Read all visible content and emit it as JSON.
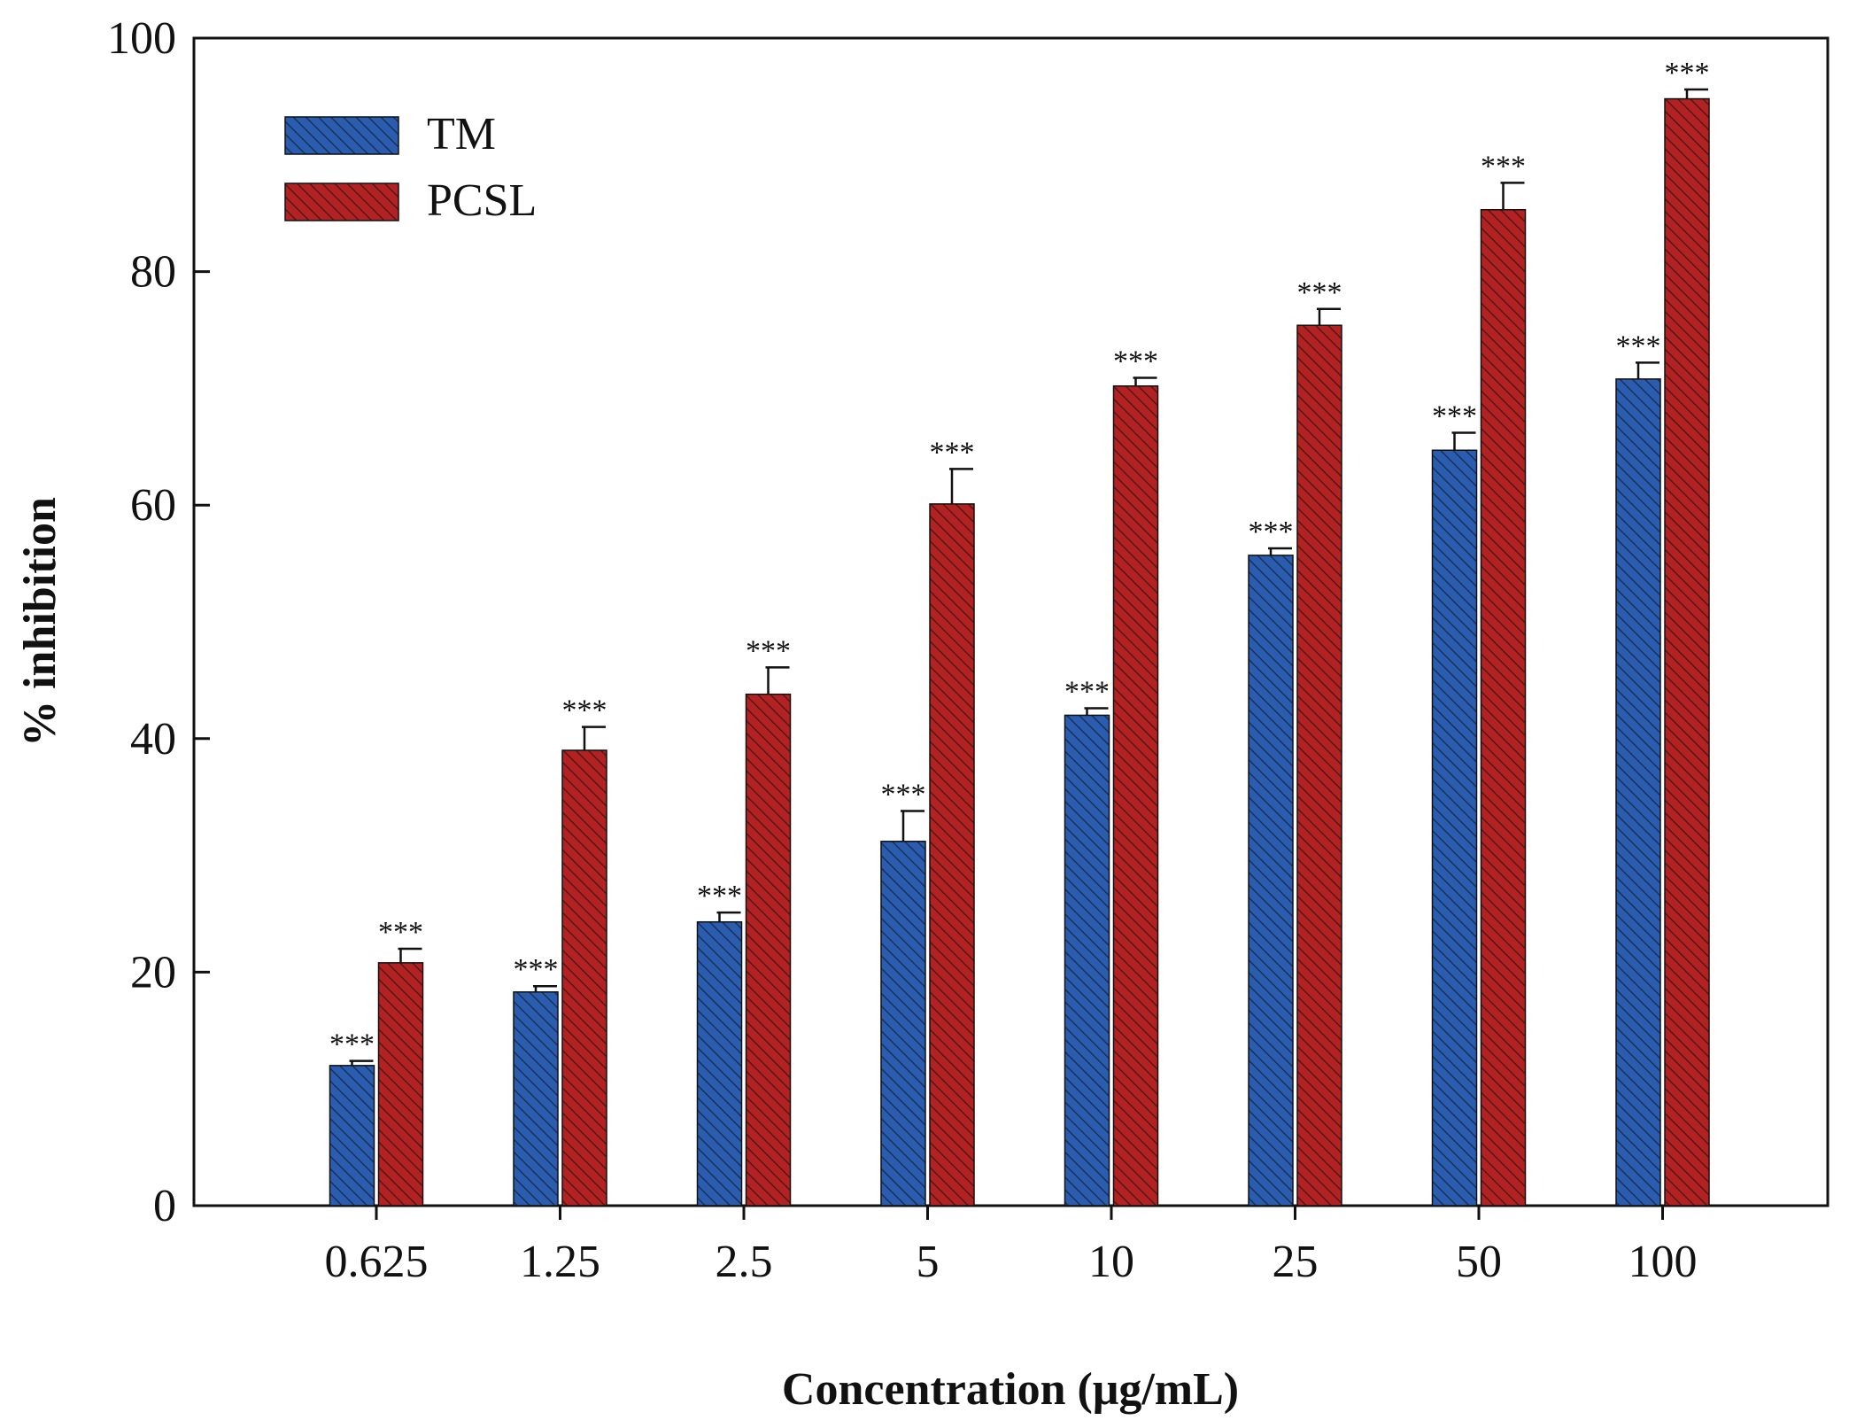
{
  "chart_data": {
    "type": "bar",
    "title": "",
    "xlabel": "Concentration (μg/mL)",
    "ylabel": "% inhibition",
    "ylim": [
      0,
      100
    ],
    "yticks": [
      "0",
      "20",
      "40",
      "60",
      "80",
      "100"
    ],
    "categories": [
      "0.625",
      "1.25",
      "2.5",
      "5",
      "10",
      "25",
      "50",
      "100"
    ],
    "series": [
      {
        "name": "TM",
        "color": "#2a5db0",
        "values": [
          12.0,
          18.3,
          24.3,
          31.2,
          42.0,
          55.7,
          64.7,
          70.8
        ],
        "errors": [
          0.4,
          0.5,
          0.8,
          2.6,
          0.6,
          0.6,
          1.5,
          1.4
        ],
        "labels": [
          "***",
          "***",
          "***",
          "***",
          "***",
          "***",
          "***",
          "***"
        ]
      },
      {
        "name": "PCSL",
        "color": "#b22222",
        "values": [
          20.8,
          39.0,
          43.8,
          60.1,
          70.2,
          75.4,
          85.3,
          94.8
        ],
        "errors": [
          1.2,
          2.0,
          2.3,
          3.0,
          0.7,
          1.4,
          2.3,
          0.8
        ],
        "labels": [
          "***",
          "***",
          "***",
          "***",
          "***",
          "***",
          "***",
          "***"
        ]
      }
    ],
    "legend_position": "top-left",
    "grid": false
  }
}
